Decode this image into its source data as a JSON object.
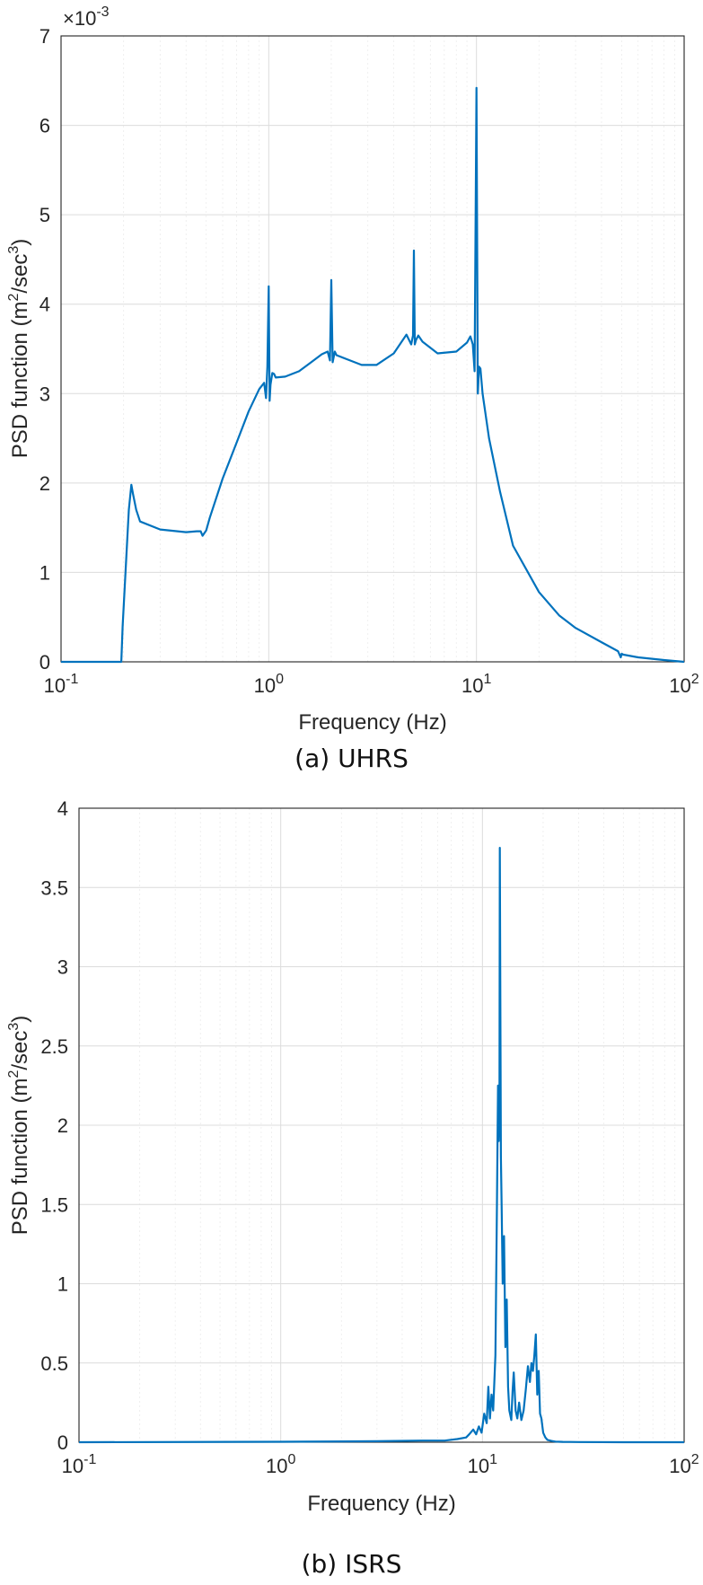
{
  "chart_data": [
    {
      "type": "line",
      "caption": "(a) UHRS",
      "xlabel": "Frequency (Hz)",
      "ylabel_main": "PSD function (m",
      "ylabel_sup1": "2",
      "ylabel_mid": "/sec",
      "ylabel_sup2": "3",
      "ylabel_end": ")",
      "x_scale": "log",
      "xlim": [
        0.1,
        100
      ],
      "ylim": [
        0,
        7
      ],
      "y_multiplier_base": "×10",
      "y_multiplier_exp": "-3",
      "grid": true,
      "x_ticks": [
        {
          "value": 0.1,
          "base": "10",
          "exp": "-1"
        },
        {
          "value": 1,
          "base": "10",
          "exp": "0"
        },
        {
          "value": 10,
          "base": "10",
          "exp": "1"
        },
        {
          "value": 100,
          "base": "10",
          "exp": "2"
        }
      ],
      "y_ticks": [
        "0",
        "1",
        "2",
        "3",
        "4",
        "5",
        "6",
        "7"
      ],
      "color": "#0072BD",
      "series": [
        {
          "x": [
            0.1,
            0.195,
            0.198,
            0.212,
            0.218,
            0.222,
            0.23,
            0.24,
            0.3,
            0.4,
            0.45,
            0.47,
            0.48,
            0.5,
            0.52,
            0.6,
            0.7,
            0.8,
            0.9,
            0.95,
            0.97,
            0.985,
            1.0,
            1.01,
            1.02,
            1.04,
            1.06,
            1.08,
            1.2,
            1.4,
            1.6,
            1.8,
            1.92,
            1.97,
            2.0,
            2.03,
            2.08,
            2.12,
            2.4,
            2.8,
            3.3,
            4.0,
            4.6,
            4.85,
            4.95,
            5.0,
            5.05,
            5.12,
            5.25,
            5.5,
            6.5,
            8.0,
            9.0,
            9.35,
            9.6,
            9.8,
            10.0,
            10.15,
            10.3,
            10.45,
            10.7,
            11.5,
            13,
            15,
            20,
            25,
            30,
            40,
            48,
            49.5,
            50,
            51,
            60,
            80,
            100
          ],
          "y": [
            0,
            0,
            0.4,
            1.7,
            1.98,
            1.88,
            1.7,
            1.57,
            1.48,
            1.45,
            1.46,
            1.46,
            1.41,
            1.47,
            1.61,
            2.05,
            2.45,
            2.8,
            3.05,
            3.12,
            2.95,
            3.3,
            4.2,
            2.92,
            3.1,
            3.23,
            3.22,
            3.18,
            3.19,
            3.25,
            3.35,
            3.44,
            3.47,
            3.37,
            4.27,
            3.35,
            3.47,
            3.43,
            3.38,
            3.32,
            3.32,
            3.45,
            3.66,
            3.55,
            3.65,
            4.6,
            3.55,
            3.6,
            3.65,
            3.58,
            3.45,
            3.47,
            3.57,
            3.64,
            3.55,
            3.25,
            6.42,
            3.0,
            3.3,
            3.28,
            3.0,
            2.5,
            1.9,
            1.3,
            0.78,
            0.52,
            0.38,
            0.22,
            0.12,
            0.05,
            0.09,
            0.08,
            0.05,
            0.02,
            0.0
          ]
        }
      ]
    },
    {
      "type": "line",
      "caption": "(b) ISRS",
      "xlabel": "Frequency (Hz)",
      "ylabel_main": "PSD function (m",
      "ylabel_sup1": "2",
      "ylabel_mid": "/sec",
      "ylabel_sup2": "3",
      "ylabel_end": ")",
      "x_scale": "log",
      "xlim": [
        0.1,
        100
      ],
      "ylim": [
        0,
        4
      ],
      "grid": true,
      "x_ticks": [
        {
          "value": 0.1,
          "base": "10",
          "exp": "-1"
        },
        {
          "value": 1,
          "base": "10",
          "exp": "0"
        },
        {
          "value": 10,
          "base": "10",
          "exp": "1"
        },
        {
          "value": 100,
          "base": "10",
          "exp": "2"
        }
      ],
      "y_ticks": [
        "0",
        "0.5",
        "1",
        "1.5",
        "2",
        "2.5",
        "3",
        "3.5",
        "4"
      ],
      "color": "#0072BD",
      "series": [
        {
          "x": [
            0.1,
            1.0,
            3.0,
            5.0,
            6.5,
            7.5,
            8.3,
            8.6,
            9.0,
            9.3,
            9.6,
            9.9,
            10.2,
            10.5,
            10.7,
            10.9,
            11.1,
            11.3,
            11.6,
            11.8,
            11.95,
            12.05,
            12.15,
            12.2,
            12.28,
            12.35,
            12.45,
            12.6,
            12.8,
            13.0,
            13.2,
            13.4,
            13.6,
            13.9,
            14.1,
            14.3,
            14.6,
            14.9,
            15.2,
            15.6,
            16.0,
            16.4,
            16.8,
            17.2,
            17.5,
            17.8,
            18.1,
            18.4,
            18.7,
            19.0,
            19.3,
            19.6,
            20.0,
            20.5,
            21.0,
            22.0,
            23.0,
            25.0,
            30.0,
            50.0,
            100.0
          ],
          "y": [
            0,
            0.003,
            0.006,
            0.01,
            0.01,
            0.02,
            0.03,
            0.05,
            0.08,
            0.05,
            0.1,
            0.06,
            0.18,
            0.12,
            0.35,
            0.15,
            0.3,
            0.2,
            0.55,
            1.5,
            2.25,
            1.9,
            2.1,
            3.75,
            2.6,
            1.8,
            1.5,
            1.0,
            1.3,
            0.6,
            0.9,
            0.35,
            0.2,
            0.14,
            0.32,
            0.44,
            0.2,
            0.15,
            0.25,
            0.14,
            0.2,
            0.33,
            0.48,
            0.38,
            0.5,
            0.45,
            0.55,
            0.68,
            0.3,
            0.45,
            0.18,
            0.15,
            0.06,
            0.03,
            0.015,
            0.008,
            0.004,
            0.002,
            0.001,
            0,
            0
          ]
        }
      ]
    }
  ]
}
